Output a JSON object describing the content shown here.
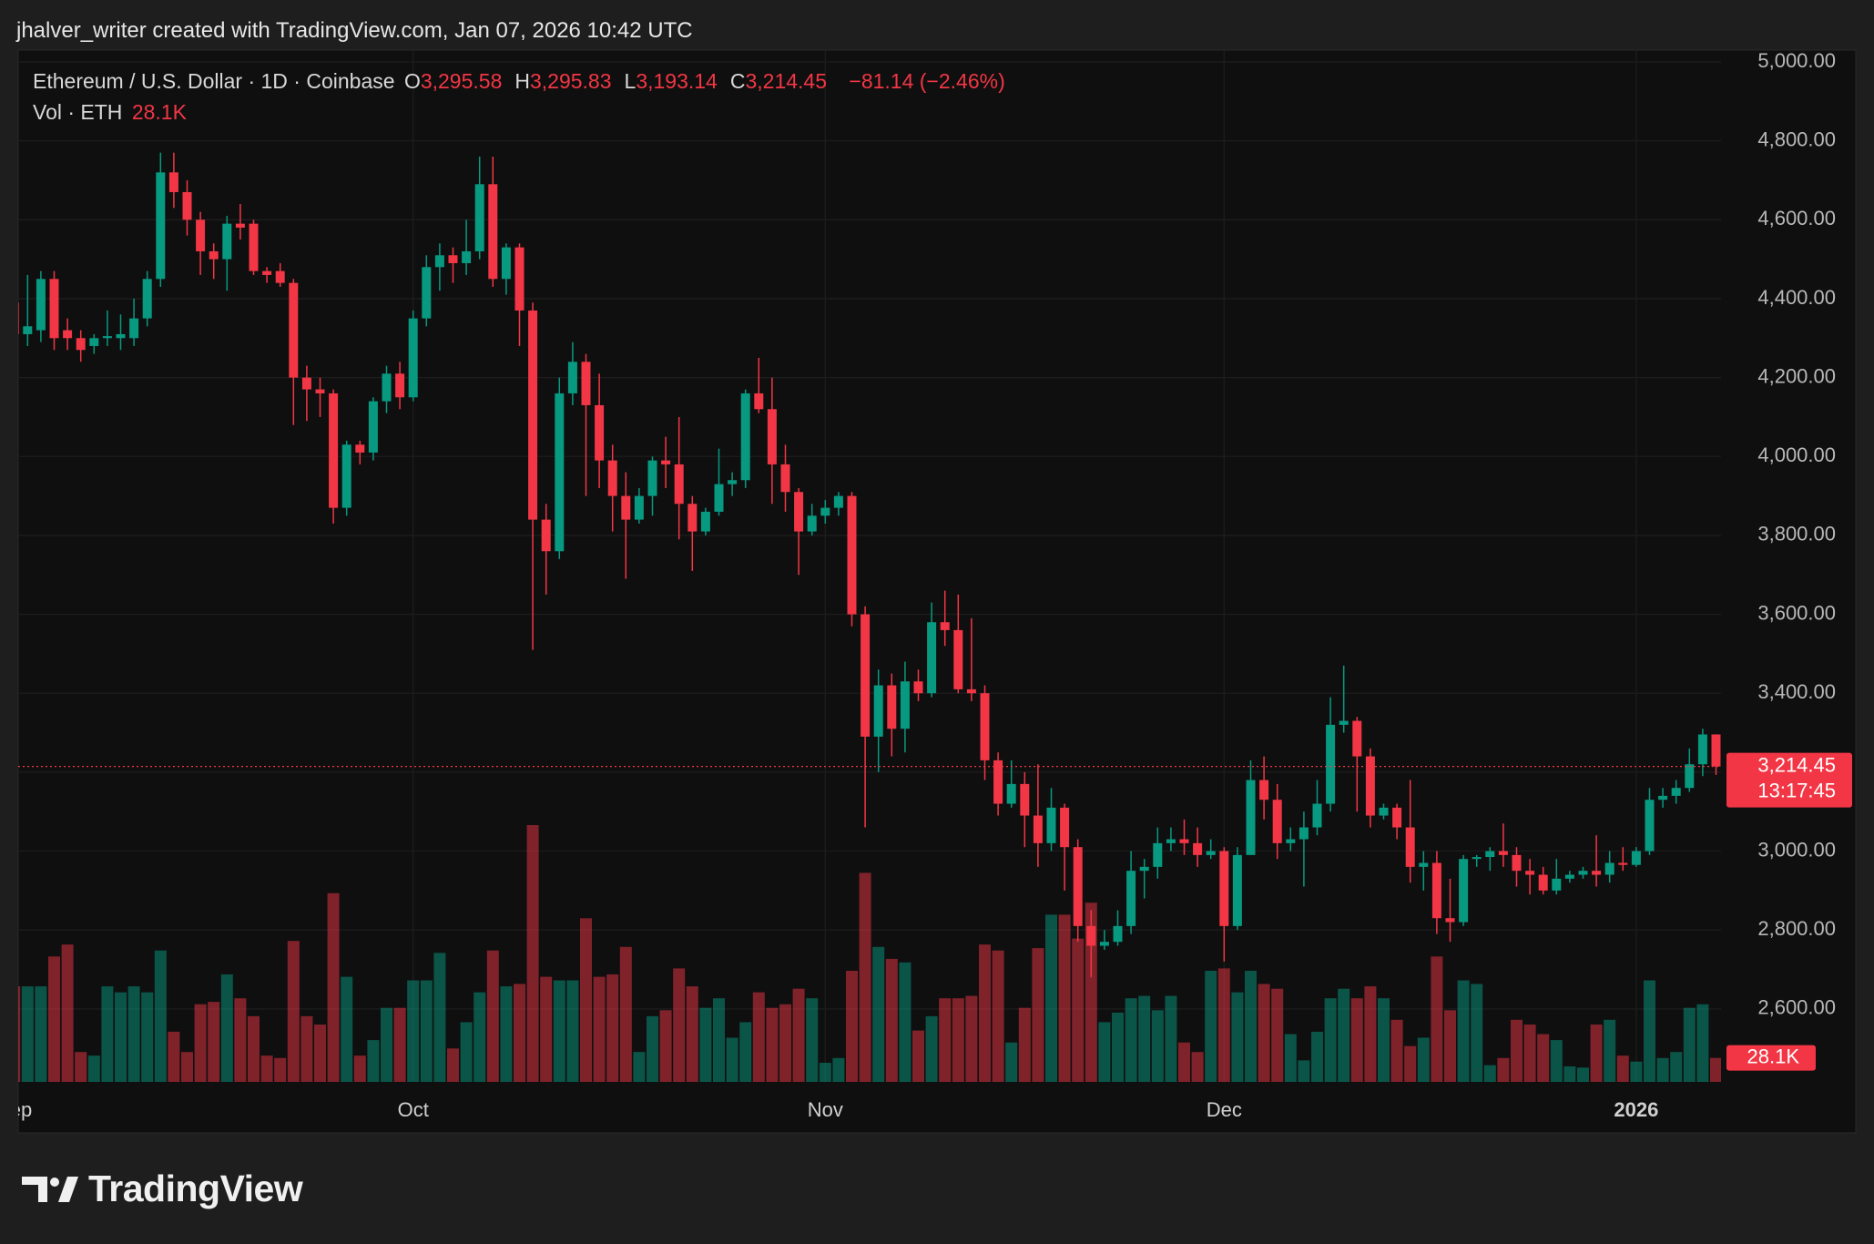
{
  "header": {
    "attribution": "jhalver_writer created with TradingView.com, Jan 07, 2026 10:42 UTC"
  },
  "chart_data": {
    "type": "candlestick",
    "title": "Ethereum / U.S. Dollar · 1D · Coinbase",
    "legend_ohlc": [
      {
        "key": "O",
        "label": "3,295.58"
      },
      {
        "key": "H",
        "label": "3,295.83"
      },
      {
        "key": "L",
        "label": "3,193.14"
      },
      {
        "key": "C",
        "label": "3,214.45"
      }
    ],
    "change": "−81.14 (−2.46%)",
    "volume_title": "Vol · ETH",
    "categories": [
      "Sep",
      null,
      null,
      null,
      null,
      null,
      null,
      null,
      null,
      null,
      null,
      null,
      null,
      null,
      null,
      null,
      null,
      null,
      null,
      null,
      null,
      null,
      null,
      null,
      null,
      null,
      null,
      null,
      null,
      null,
      "Oct",
      null,
      null,
      null,
      null,
      null,
      null,
      null,
      null,
      null,
      null,
      null,
      null,
      null,
      null,
      null,
      null,
      null,
      null,
      null,
      null,
      null,
      null,
      null,
      null,
      null,
      null,
      null,
      null,
      null,
      null,
      "Nov",
      null,
      null,
      null,
      null,
      null,
      null,
      null,
      null,
      null,
      null,
      null,
      null,
      null,
      null,
      null,
      null,
      null,
      null,
      null,
      null,
      null,
      null,
      null,
      null,
      null,
      null,
      null,
      null,
      null,
      "Dec",
      null,
      null,
      null,
      null,
      null,
      null,
      null,
      null,
      null,
      null,
      null,
      null,
      null,
      null,
      null,
      null,
      null,
      null,
      null,
      null,
      null,
      null,
      null,
      null,
      null,
      null,
      null,
      null,
      null,
      null,
      "2026",
      null,
      null,
      null,
      null,
      null,
      null
    ],
    "open": [
      4390,
      4310,
      4320,
      4450,
      4320,
      4300,
      4280,
      4300,
      4300,
      4300,
      4350,
      4450,
      4720,
      4670,
      4600,
      4520,
      4500,
      4590,
      4590,
      4470,
      4470,
      4440,
      4200,
      4170,
      4160,
      3870,
      4030,
      4010,
      4140,
      4210,
      4150,
      4350,
      4480,
      4510,
      4490,
      4520,
      4690,
      4450,
      4530,
      4370,
      3840,
      3760,
      4160,
      4240,
      4130,
      3990,
      3900,
      3840,
      3900,
      3990,
      3980,
      3880,
      3810,
      3860,
      3930,
      3940,
      4160,
      4120,
      3980,
      3910,
      3810,
      3850,
      3870,
      3900,
      3600,
      3290,
      3420,
      3310,
      3430,
      3400,
      3580,
      3560,
      3410,
      3400,
      3230,
      3120,
      3170,
      3090,
      3020,
      3110,
      3010,
      2810,
      2760,
      2770,
      2810,
      2950,
      2960,
      3020,
      3030,
      3020,
      2990,
      3000,
      2810,
      2990,
      3180,
      3130,
      3020,
      3030,
      3060,
      3120,
      3320,
      3330,
      3240,
      3090,
      3110,
      3060,
      2960,
      2970,
      2830,
      2820,
      2980,
      2985,
      3000,
      2990,
      2950,
      2940,
      2900,
      2930,
      2940,
      2950,
      2940,
      2970,
      2965,
      3000,
      3130,
      3140,
      3160,
      3220,
      3295.58
    ],
    "high": [
      4400,
      4460,
      4470,
      4470,
      4350,
      4320,
      4310,
      4370,
      4360,
      4400,
      4470,
      4770,
      4770,
      4700,
      4620,
      4540,
      4610,
      4640,
      4600,
      4480,
      4490,
      4450,
      4230,
      4200,
      4170,
      4040,
      4040,
      4150,
      4230,
      4240,
      4370,
      4510,
      4540,
      4530,
      4600,
      4760,
      4760,
      4540,
      4540,
      4390,
      3880,
      4200,
      4290,
      4260,
      4210,
      4030,
      3960,
      3920,
      4000,
      4050,
      4100,
      3900,
      3870,
      4020,
      3960,
      4170,
      4250,
      4200,
      4030,
      3920,
      3880,
      3890,
      3910,
      3910,
      3620,
      3460,
      3450,
      3480,
      3460,
      3630,
      3660,
      3650,
      3590,
      3420,
      3250,
      3230,
      3200,
      3220,
      3160,
      3120,
      3030,
      2850,
      2800,
      2850,
      3000,
      2980,
      3060,
      3060,
      3080,
      3060,
      3030,
      3010,
      3010,
      3230,
      3240,
      3170,
      3060,
      3100,
      3180,
      3390,
      3470,
      3340,
      3260,
      3120,
      3120,
      3180,
      3000,
      3000,
      2930,
      2990,
      2990,
      3010,
      3070,
      3010,
      2980,
      2960,
      2980,
      2950,
      2960,
      3040,
      3000,
      3010,
      3010,
      3160,
      3160,
      3180,
      3260,
      3310,
      3295.83
    ],
    "low": [
      4300,
      4280,
      4290,
      4270,
      4270,
      4240,
      4260,
      4280,
      4270,
      4280,
      4330,
      4430,
      4630,
      4560,
      4460,
      4450,
      4420,
      4550,
      4460,
      4440,
      4430,
      4080,
      4090,
      4100,
      3830,
      3850,
      3980,
      3990,
      4110,
      4120,
      4140,
      4330,
      4420,
      4440,
      4460,
      4500,
      4430,
      4410,
      4280,
      3510,
      3650,
      3740,
      4130,
      3900,
      3920,
      3810,
      3690,
      3830,
      3850,
      3920,
      3790,
      3710,
      3800,
      3850,
      3900,
      3920,
      4110,
      3880,
      3860,
      3700,
      3800,
      3830,
      3850,
      3570,
      3060,
      3200,
      3240,
      3250,
      3380,
      3390,
      3520,
      3400,
      3380,
      3180,
      3090,
      3110,
      3010,
      2960,
      3000,
      2900,
      2770,
      2680,
      2750,
      2760,
      2790,
      2880,
      2930,
      3000,
      2990,
      2960,
      2980,
      2720,
      2800,
      2990,
      3080,
      2980,
      3000,
      2910,
      3040,
      3100,
      3300,
      3100,
      3060,
      3080,
      3030,
      2920,
      2900,
      2790,
      2770,
      2810,
      2960,
      2950,
      2960,
      2910,
      2890,
      2890,
      2890,
      2920,
      2930,
      2910,
      2920,
      2950,
      2960,
      2990,
      3110,
      3120,
      3150,
      3190,
      3193.14
    ],
    "close": [
      4310,
      4330,
      4450,
      4300,
      4300,
      4270,
      4300,
      4305,
      4310,
      4350,
      4450,
      4720,
      4670,
      4600,
      4520,
      4500,
      4590,
      4580,
      4470,
      4460,
      4440,
      4200,
      4170,
      4160,
      3870,
      4030,
      4010,
      4140,
      4210,
      4150,
      4350,
      4480,
      4510,
      4490,
      4520,
      4690,
      4450,
      4530,
      4370,
      3840,
      3760,
      4160,
      4240,
      4130,
      3990,
      3900,
      3840,
      3900,
      3990,
      3980,
      3880,
      3810,
      3860,
      3930,
      3940,
      4160,
      4120,
      3980,
      3910,
      3810,
      3850,
      3870,
      3900,
      3600,
      3290,
      3420,
      3310,
      3430,
      3400,
      3580,
      3560,
      3410,
      3400,
      3230,
      3120,
      3170,
      3090,
      3020,
      3110,
      3010,
      2810,
      2760,
      2770,
      2810,
      2950,
      2960,
      3020,
      3030,
      3020,
      2990,
      3000,
      2810,
      2990,
      3180,
      3130,
      3020,
      3030,
      3060,
      3120,
      3320,
      3330,
      3240,
      3090,
      3110,
      3060,
      2960,
      2970,
      2830,
      2820,
      2980,
      2985,
      3000,
      2990,
      2950,
      2940,
      2900,
      2930,
      2940,
      2950,
      2940,
      2970,
      2965,
      3000,
      3130,
      3140,
      3160,
      3220,
      3295.58,
      3214.45
    ],
    "volume": [
      112000,
      112000,
      112000,
      147000,
      161000,
      35000,
      30800,
      112000,
      105000,
      112000,
      105000,
      154000,
      58800,
      35000,
      91000,
      93800,
      126000,
      98000,
      77000,
      30800,
      28000,
      165200,
      77000,
      67200,
      221200,
      123200,
      30800,
      49000,
      86800,
      86800,
      119000,
      119000,
      151200,
      39200,
      70000,
      105000,
      154000,
      112000,
      114800,
      301000,
      123200,
      119000,
      119000,
      191800,
      123200,
      126000,
      158200,
      35000,
      77000,
      84000,
      133000,
      112000,
      86800,
      98000,
      51800,
      70000,
      105000,
      86800,
      91000,
      109200,
      98000,
      22400,
      28000,
      130200,
      245000,
      158200,
      144200,
      140000,
      60200,
      77000,
      98000,
      98000,
      100800,
      161000,
      154000,
      46200,
      86800,
      156800,
      196000,
      196000,
      168000,
      210000,
      70000,
      81200,
      98000,
      100800,
      84000,
      100800,
      46200,
      35000,
      130200,
      133000,
      105000,
      130200,
      114800,
      109200,
      56000,
      25200,
      58800,
      98000,
      109200,
      98000,
      112000,
      98000,
      72800,
      42000,
      51800,
      147000,
      84000,
      119000,
      114800,
      19600,
      28000,
      72800,
      67200,
      56000,
      49000,
      18200,
      16800,
      67200,
      72800,
      30800,
      23800,
      119000,
      28000,
      35000,
      86800,
      91000,
      28100
    ],
    "last_volume": {
      "value": 28100,
      "label": "28.1K"
    },
    "up_color": "#089981",
    "down_color": "#f23645",
    "ylim": [
      2415,
      5030
    ],
    "yticks": [
      {
        "value": 2600,
        "label": "2,600.00"
      },
      {
        "value": 2800,
        "label": "2,800.00"
      },
      {
        "value": 3000,
        "label": "3,000.00"
      },
      {
        "value": 3200,
        "label": "3,200.00"
      },
      {
        "value": 3400,
        "label": "3,400.00"
      },
      {
        "value": 3600,
        "label": "3,600.00"
      },
      {
        "value": 3800,
        "label": "3,800.00"
      },
      {
        "value": 4000,
        "label": "4,000.00"
      },
      {
        "value": 4200,
        "label": "4,200.00"
      },
      {
        "value": 4400,
        "label": "4,400.00"
      },
      {
        "value": 4600,
        "label": "4,600.00"
      },
      {
        "value": 4800,
        "label": "4,800.00"
      },
      {
        "value": 5000,
        "label": "5,000.00"
      }
    ],
    "grid": true,
    "last_price": {
      "value": 3214.45,
      "label": "3,214.45"
    },
    "countdown": "13:17:45"
  },
  "footer": {
    "brand": "TradingView"
  }
}
